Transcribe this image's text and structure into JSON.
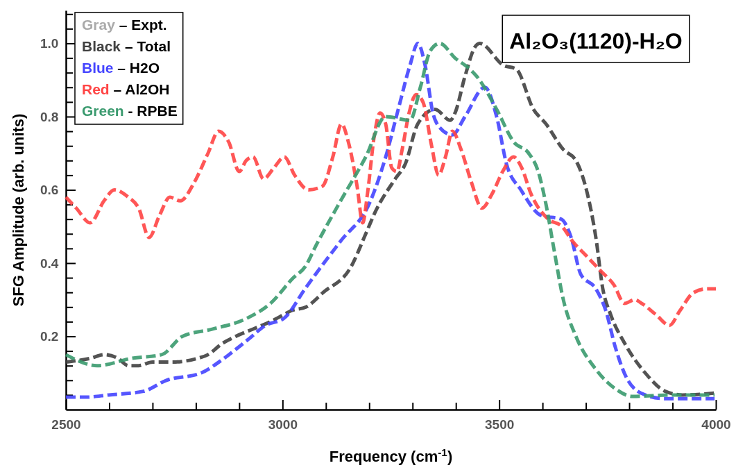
{
  "chart_data": {
    "type": "line",
    "title": "Al₂O₃(1120)-H₂O",
    "xlabel": "Frequency (cm$^{-1}$)",
    "ylabel": "SFG Amplitude (arb. units)",
    "xlim": [
      2500,
      4000
    ],
    "ylim": [
      0,
      1.09
    ],
    "xticks": [
      2500,
      {
        "value": 2600,
        "label": null
      },
      {
        "value": 2700,
        "label": null
      },
      {
        "value": 2800,
        "label": null
      },
      {
        "value": 2900,
        "label": null
      },
      3000,
      {
        "value": 3100,
        "label": null
      },
      {
        "value": 3200,
        "label": null
      },
      {
        "value": 3300,
        "label": null
      },
      {
        "value": 3400,
        "label": null
      },
      3500,
      {
        "value": 3600,
        "label": null
      },
      {
        "value": 3700,
        "label": null
      },
      {
        "value": 3800,
        "label": null
      },
      {
        "value": 3900,
        "label": null
      },
      4000
    ],
    "yticks": [
      {
        "value": 0.04,
        "label": null
      },
      {
        "value": 0.08,
        "label": null
      },
      {
        "value": 0.12,
        "label": null
      },
      {
        "value": 0.16,
        "label": null
      },
      {
        "value": 0.2,
        "label": "0.2"
      },
      {
        "value": 0.24,
        "label": null
      },
      {
        "value": 0.28,
        "label": null
      },
      {
        "value": 0.32,
        "label": null
      },
      {
        "value": 0.36,
        "label": null
      },
      {
        "value": 0.4,
        "label": "0.4"
      },
      {
        "value": 0.44,
        "label": null
      },
      {
        "value": 0.48,
        "label": null
      },
      {
        "value": 0.52,
        "label": null
      },
      {
        "value": 0.56,
        "label": null
      },
      {
        "value": 0.6,
        "label": "0.6"
      },
      {
        "value": 0.64,
        "label": null
      },
      {
        "value": 0.68,
        "label": null
      },
      {
        "value": 0.72,
        "label": null
      },
      {
        "value": 0.76,
        "label": null
      },
      {
        "value": 0.8,
        "label": "0.8"
      },
      {
        "value": 0.84,
        "label": null
      },
      {
        "value": 0.88,
        "label": null
      },
      {
        "value": 0.92,
        "label": null
      },
      {
        "value": 0.96,
        "label": null
      },
      {
        "value": 1.0,
        "label": "1.0"
      },
      {
        "value": 1.04,
        "label": null
      },
      {
        "value": 1.08,
        "label": null
      }
    ],
    "legend": "top left",
    "grid": false,
    "marker": "none",
    "line_style": "dashed",
    "series": [
      {
        "name": "Gray – Expt.",
        "color": "#aaaaaa"
      },
      {
        "name": "Black – Total",
        "color": "#404040",
        "x": [
          2500,
          2556,
          2588,
          2620,
          2644,
          2668,
          2700,
          2748,
          2804,
          2828,
          2860,
          2892,
          2932,
          2972,
          3004,
          3020,
          3054,
          3094,
          3158,
          3192,
          3214,
          3260,
          3283,
          3312,
          3352,
          3387,
          3398,
          3421,
          3444,
          3455,
          3510,
          3539,
          3579,
          3608,
          3648,
          3677,
          3699,
          3723,
          3739,
          3757,
          3790,
          3837,
          3883,
          3923,
          3997
        ],
        "values": [
          0.13,
          0.14,
          0.15,
          0.14,
          0.12,
          0.12,
          0.13,
          0.13,
          0.14,
          0.15,
          0.18,
          0.2,
          0.22,
          0.24,
          0.26,
          0.27,
          0.28,
          0.32,
          0.39,
          0.48,
          0.54,
          0.63,
          0.67,
          0.78,
          0.82,
          0.79,
          0.81,
          0.91,
          0.99,
          1.0,
          0.94,
          0.93,
          0.82,
          0.78,
          0.71,
          0.68,
          0.61,
          0.47,
          0.33,
          0.26,
          0.18,
          0.1,
          0.05,
          0.04,
          0.045
        ]
      },
      {
        "name": "Blue – H2O",
        "color": "#4444ff",
        "x": [
          2500,
          2545,
          2599,
          2679,
          2732,
          2812,
          2865,
          2919,
          2961,
          3004,
          3052,
          3089,
          3134,
          3203,
          3238,
          3267,
          3294,
          3312,
          3329,
          3347,
          3363,
          3392,
          3421,
          3467,
          3494,
          3517,
          3550,
          3597,
          3643,
          3666,
          3688,
          3723,
          3746,
          3768,
          3797,
          3837,
          3883,
          3997
        ],
        "values": [
          0.034,
          0.034,
          0.04,
          0.05,
          0.08,
          0.1,
          0.14,
          0.19,
          0.23,
          0.25,
          0.33,
          0.39,
          0.46,
          0.57,
          0.69,
          0.82,
          0.94,
          1.0,
          0.94,
          0.81,
          0.77,
          0.75,
          0.8,
          0.88,
          0.8,
          0.67,
          0.6,
          0.53,
          0.52,
          0.47,
          0.37,
          0.33,
          0.27,
          0.17,
          0.08,
          0.04,
          0.03,
          0.03
        ]
      },
      {
        "name": "Red – Al2OH",
        "color": "#ff4444",
        "x": [
          2500,
          2524,
          2556,
          2588,
          2612,
          2644,
          2668,
          2692,
          2716,
          2740,
          2764,
          2796,
          2828,
          2852,
          2876,
          2900,
          2916,
          2932,
          2956,
          2980,
          3004,
          3028,
          3060,
          3092,
          3116,
          3136,
          3152,
          3172,
          3185,
          3196,
          3212,
          3225,
          3238,
          3252,
          3264,
          3276,
          3292,
          3308,
          3324,
          3344,
          3360,
          3376,
          3392,
          3412,
          3436,
          3460,
          3484,
          3508,
          3533,
          3552,
          3573,
          3613,
          3645,
          3669,
          3701,
          3733,
          3765,
          3789,
          3813,
          3829,
          3861,
          3893,
          3917,
          3949,
          3981,
          4000
        ],
        "values": [
          0.58,
          0.55,
          0.51,
          0.57,
          0.6,
          0.58,
          0.55,
          0.47,
          0.53,
          0.58,
          0.57,
          0.62,
          0.7,
          0.76,
          0.73,
          0.65,
          0.68,
          0.69,
          0.63,
          0.66,
          0.69,
          0.64,
          0.6,
          0.61,
          0.69,
          0.78,
          0.73,
          0.61,
          0.51,
          0.59,
          0.75,
          0.81,
          0.78,
          0.66,
          0.65,
          0.71,
          0.81,
          0.86,
          0.84,
          0.72,
          0.64,
          0.69,
          0.76,
          0.71,
          0.62,
          0.55,
          0.59,
          0.65,
          0.69,
          0.66,
          0.59,
          0.52,
          0.5,
          0.46,
          0.42,
          0.38,
          0.34,
          0.29,
          0.3,
          0.29,
          0.26,
          0.23,
          0.27,
          0.32,
          0.33,
          0.33
        ]
      },
      {
        "name": "Green - RPBE",
        "color": "#3a9a6e",
        "x": [
          2500,
          2572,
          2652,
          2721,
          2769,
          2839,
          2919,
          2972,
          3025,
          3052,
          3078,
          3134,
          3192,
          3238,
          3294,
          3318,
          3341,
          3363,
          3398,
          3432,
          3448,
          3494,
          3534,
          3568,
          3590,
          3608,
          3626,
          3648,
          3677,
          3723,
          3768,
          3808,
          3894,
          3997
        ],
        "values": [
          0.15,
          0.12,
          0.14,
          0.15,
          0.2,
          0.22,
          0.25,
          0.29,
          0.36,
          0.39,
          0.45,
          0.57,
          0.69,
          0.8,
          0.79,
          0.88,
          0.98,
          1.0,
          0.96,
          0.93,
          0.91,
          0.82,
          0.73,
          0.7,
          0.65,
          0.56,
          0.44,
          0.3,
          0.2,
          0.11,
          0.057,
          0.036,
          0.04,
          0.04
        ]
      }
    ]
  }
}
